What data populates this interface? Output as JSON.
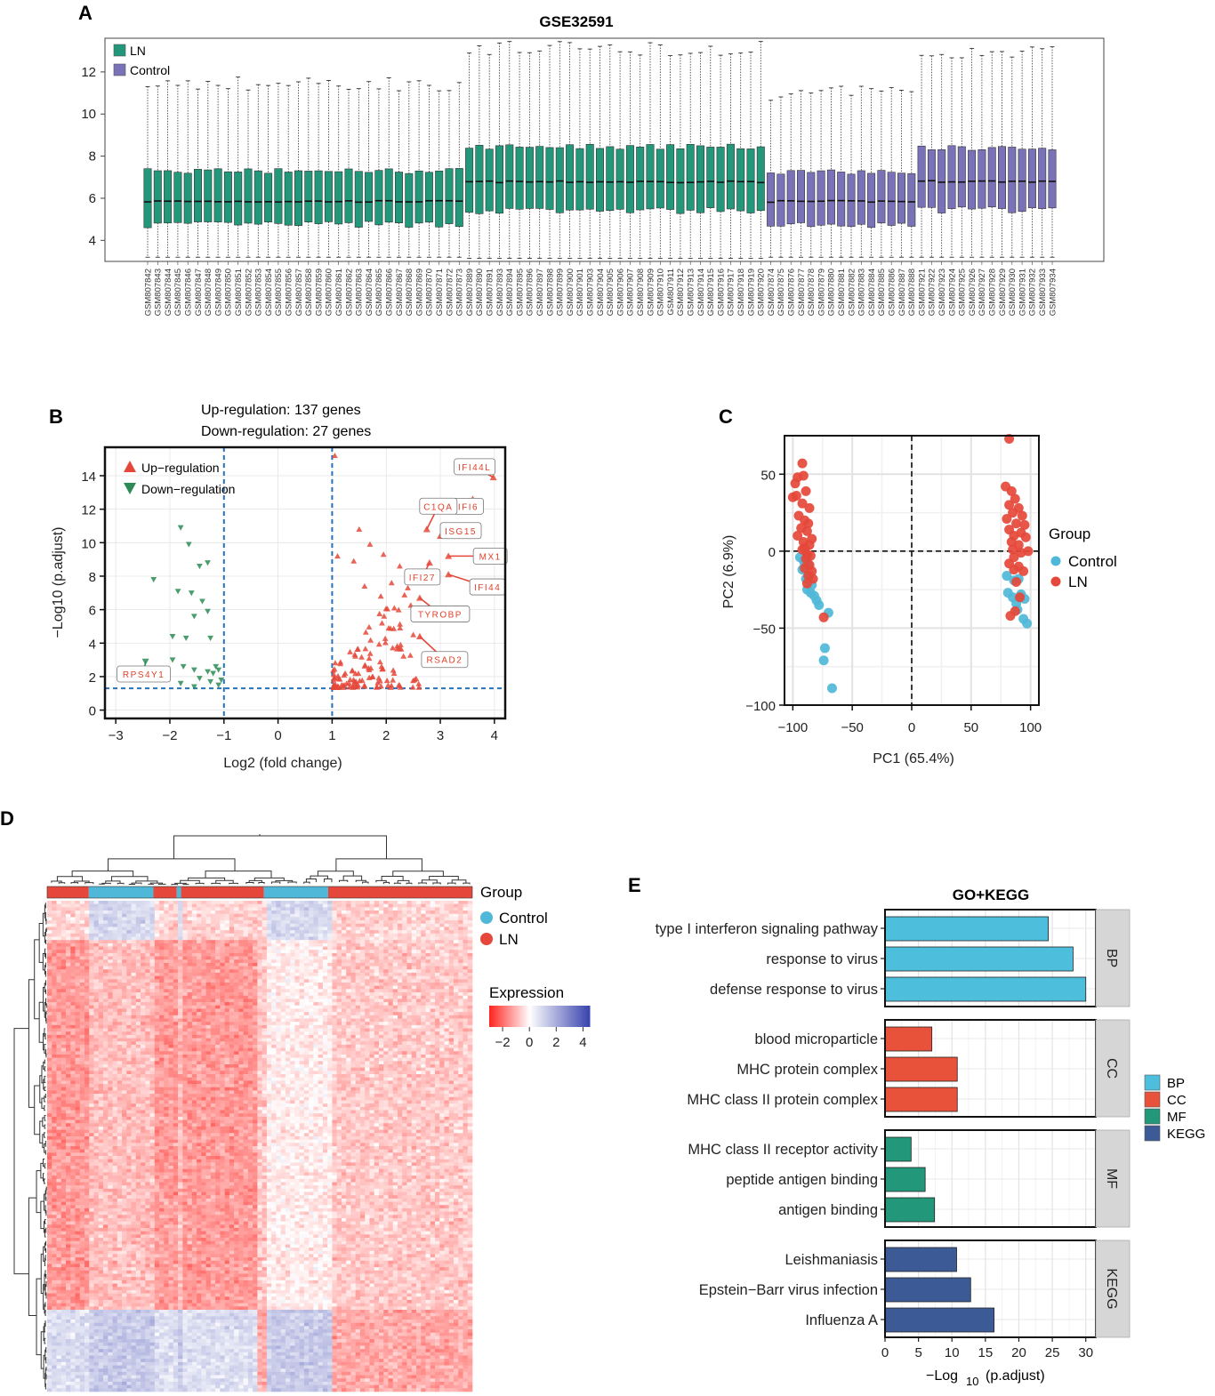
{
  "panels": {
    "a": "A",
    "b": "B",
    "c": "C",
    "d": "D",
    "e": "E"
  },
  "colors": {
    "ln_box": "#22977a",
    "control_box": "#7a72b8",
    "up": "#e5483a",
    "down": "#2e8b57",
    "pca_ln": "#e5483a",
    "pca_control": "#4fb8d8",
    "bp": "#4dbedc",
    "cc": "#e8513a",
    "mf": "#22977a",
    "kegg": "#3c5a96"
  },
  "chart_data": [
    {
      "type": "box",
      "title": "GSE32591",
      "legend": [
        "LN",
        "Control"
      ],
      "ylim": [
        3,
        13.6
      ],
      "yticks": [
        4,
        6,
        8,
        10,
        12
      ],
      "groups_by_sample": "LN: GSM807842-GSM807873 (median ~5.9) and GSM807889-GSM807920 (median ~6.8); Control: GSM807874-GSM807888 (median ~5.9) and GSM807921-GSM807934 (median ~6.8)",
      "samples": [
        "GSM807842",
        "GSM807843",
        "GSM807844",
        "GSM807845",
        "GSM807846",
        "GSM807847",
        "GSM807848",
        "GSM807849",
        "GSM807850",
        "GSM807851",
        "GSM807852",
        "GSM807853",
        "GSM807854",
        "GSM807855",
        "GSM807856",
        "GSM807857",
        "GSM807858",
        "GSM807859",
        "GSM807860",
        "GSM807861",
        "GSM807862",
        "GSM807863",
        "GSM807864",
        "GSM807865",
        "GSM807866",
        "GSM807867",
        "GSM807868",
        "GSM807869",
        "GSM807870",
        "GSM807871",
        "GSM807872",
        "GSM807873",
        "GSM807889",
        "GSM807890",
        "GSM807891",
        "GSM807893",
        "GSM807894",
        "GSM807895",
        "GSM807896",
        "GSM807897",
        "GSM807898",
        "GSM807899",
        "GSM807900",
        "GSM807901",
        "GSM807903",
        "GSM807904",
        "GSM807905",
        "GSM807906",
        "GSM807907",
        "GSM807908",
        "GSM807909",
        "GSM807910",
        "GSM807911",
        "GSM807912",
        "GSM807913",
        "GSM807914",
        "GSM807915",
        "GSM807916",
        "GSM807917",
        "GSM807918",
        "GSM807919",
        "GSM807920",
        "GSM807874",
        "GSM807875",
        "GSM807876",
        "GSM807877",
        "GSM807878",
        "GSM807879",
        "GSM807880",
        "GSM807881",
        "GSM807882",
        "GSM807883",
        "GSM807884",
        "GSM807885",
        "GSM807886",
        "GSM807887",
        "GSM807888",
        "GSM807921",
        "GSM807922",
        "GSM807923",
        "GSM807924",
        "GSM807925",
        "GSM807926",
        "GSM807927",
        "GSM807928",
        "GSM807929",
        "GSM807930",
        "GSM807931",
        "GSM807932",
        "GSM807933",
        "GSM807934"
      ],
      "group_counts": {
        "ln_a": 32,
        "ln_b": 30,
        "control_a": 15,
        "control_b": 14
      }
    },
    {
      "type": "scatter",
      "subtype": "volcano",
      "title_lines": [
        "Up-regulation: 137 genes",
        "Down-regulation: 27 genes"
      ],
      "legend": [
        "Up−regulation",
        "Down−regulation"
      ],
      "xlabel": "Log2 (fold change)",
      "ylabel": "−Log10 (p.adjust)",
      "xlim": [
        -3.2,
        4.2
      ],
      "ylim": [
        -0.5,
        15.7
      ],
      "xticks": [
        "−3",
        "−2",
        "−1",
        "0",
        "1",
        "2",
        "3",
        "4"
      ],
      "yticks": [
        "0",
        "2",
        "4",
        "6",
        "8",
        "10",
        "12",
        "14"
      ],
      "thresholds": {
        "log2fc": [
          -1,
          1
        ],
        "neglog10p": 1.3
      },
      "labeled_genes": [
        {
          "name": "IFI44L",
          "x": 3.98,
          "y": 13.9
        },
        {
          "name": "IFI6",
          "x": 3.6,
          "y": 12.6
        },
        {
          "name": "C1QA",
          "x": 2.75,
          "y": 10.8
        },
        {
          "name": "ISG15",
          "x": 3.0,
          "y": 10.4
        },
        {
          "name": "MX1",
          "x": 3.15,
          "y": 9.2
        },
        {
          "name": "IFI27",
          "x": 2.8,
          "y": 8.8
        },
        {
          "name": "IFI44",
          "x": 3.15,
          "y": 8.1
        },
        {
          "name": "TYROBP",
          "x": 2.62,
          "y": 6.7
        },
        {
          "name": "RSAD2",
          "x": 2.62,
          "y": 4.4
        },
        {
          "name": "RPS4Y1",
          "x": -2.45,
          "y": 2.9
        }
      ],
      "down_points": [
        [
          -1.8,
          10.9
        ],
        [
          -2.3,
          7.8
        ],
        [
          -1.65,
          9.9
        ],
        [
          -1.3,
          8.8
        ],
        [
          -1.45,
          8.6
        ],
        [
          -1.85,
          7.1
        ],
        [
          -1.6,
          7.0
        ],
        [
          -1.4,
          6.5
        ],
        [
          -1.3,
          5.9
        ],
        [
          -1.55,
          5.6
        ],
        [
          -1.95,
          4.4
        ],
        [
          -1.7,
          4.3
        ],
        [
          -1.25,
          4.3
        ],
        [
          -1.95,
          3.0
        ],
        [
          -1.75,
          2.6
        ],
        [
          -1.55,
          2.4
        ],
        [
          -1.3,
          2.3
        ],
        [
          -1.15,
          2.6
        ],
        [
          -1.2,
          2.2
        ],
        [
          -1.1,
          2.4
        ],
        [
          -1.45,
          1.9
        ],
        [
          -1.25,
          1.7
        ],
        [
          -1.55,
          1.4
        ],
        [
          -1.1,
          1.5
        ],
        [
          -1.8,
          1.6
        ],
        [
          -1.05,
          1.8
        ]
      ],
      "up_count": 137,
      "down_count": 27
    },
    {
      "type": "scatter",
      "subtype": "pca",
      "xlabel": "PC1 (65.4%)",
      "ylabel": "PC2 (6.9%)",
      "xlim": [
        -107,
        107
      ],
      "ylim": [
        -100,
        75
      ],
      "xticks": [
        "−100",
        "−50",
        "0",
        "50",
        "100"
      ],
      "yticks": [
        "50",
        "0",
        "−50",
        "−100"
      ],
      "legend_title": "Group",
      "legend": [
        "Control",
        "LN"
      ],
      "ln_points": [
        [
          -92,
          57
        ],
        [
          -96,
          48
        ],
        [
          -98,
          44
        ],
        [
          -91,
          49
        ],
        [
          -89,
          39
        ],
        [
          -97,
          36
        ],
        [
          -100,
          35
        ],
        [
          -92,
          31
        ],
        [
          -86,
          28
        ],
        [
          -95,
          23
        ],
        [
          -90,
          20
        ],
        [
          -87,
          18
        ],
        [
          -93,
          15
        ],
        [
          -88,
          13
        ],
        [
          -96,
          10
        ],
        [
          -84,
          8
        ],
        [
          -91,
          6
        ],
        [
          -86,
          4
        ],
        [
          -90,
          2
        ],
        [
          -92,
          1
        ],
        [
          -88,
          -2
        ],
        [
          -85,
          -3
        ],
        [
          -89,
          -5
        ],
        [
          -86,
          -9
        ],
        [
          -90,
          -11
        ],
        [
          -84,
          -13
        ],
        [
          -87,
          -16
        ],
        [
          -83,
          -18
        ],
        [
          -88,
          -21
        ],
        [
          -74,
          -43
        ],
        [
          82,
          73
        ],
        [
          79,
          42
        ],
        [
          84,
          39
        ],
        [
          87,
          34
        ],
        [
          82,
          30
        ],
        [
          90,
          28
        ],
        [
          85,
          25
        ],
        [
          93,
          23
        ],
        [
          80,
          21
        ],
        [
          88,
          18
        ],
        [
          95,
          17
        ],
        [
          82,
          14
        ],
        [
          92,
          12
        ],
        [
          86,
          10
        ],
        [
          96,
          9
        ],
        [
          84,
          6
        ],
        [
          90,
          4
        ],
        [
          85,
          1
        ],
        [
          92,
          -1
        ],
        [
          98,
          0
        ],
        [
          86,
          -4
        ],
        [
          82,
          -8
        ],
        [
          90,
          -10
        ],
        [
          86,
          -12
        ],
        [
          94,
          -13
        ],
        [
          88,
          -20
        ],
        [
          87,
          -39
        ],
        [
          91,
          -30
        ],
        [
          83,
          -42
        ]
      ],
      "control_points": [
        [
          -94,
          -4
        ],
        [
          -90,
          -8
        ],
        [
          -87,
          -9
        ],
        [
          -92,
          -12
        ],
        [
          -86,
          -16
        ],
        [
          -89,
          -18
        ],
        [
          -84,
          -22
        ],
        [
          -88,
          -25
        ],
        [
          -85,
          -27
        ],
        [
          -82,
          -29
        ],
        [
          -80,
          -32
        ],
        [
          -78,
          -35
        ],
        [
          -70,
          -40
        ],
        [
          -73,
          -63
        ],
        [
          -74,
          -71
        ],
        [
          -67,
          -89
        ],
        [
          -88,
          -3
        ],
        [
          -91,
          -6
        ],
        [
          80,
          -16
        ],
        [
          86,
          -19
        ],
        [
          90,
          -18
        ],
        [
          81,
          -27
        ],
        [
          85,
          -30
        ],
        [
          88,
          -34
        ],
        [
          92,
          -28
        ],
        [
          95,
          -31
        ],
        [
          89,
          -38
        ],
        [
          94,
          -44
        ],
        [
          97,
          -47
        ]
      ]
    },
    {
      "type": "heatmap",
      "legend_title": "Group",
      "legend": [
        "Control",
        "LN"
      ],
      "scale_title": "Expression",
      "scale_ticks": [
        "−2",
        "0",
        "2",
        "4"
      ],
      "group_bar": [
        "LN",
        "Control",
        "LN",
        "Control",
        "LN",
        "Control",
        "LN"
      ],
      "group_bar_fractions": [
        0.098,
        0.152,
        0.055,
        0.01,
        0.195,
        0.151,
        0.339
      ]
    },
    {
      "type": "bar",
      "orientation": "horizontal",
      "title": "GO+KEGG",
      "xlabel_main": "−Log",
      "xlabel_sub": "10",
      "xlabel_tail": "(p.adjust)",
      "xlim": [
        0,
        31.5
      ],
      "xticks": [
        "0",
        "5",
        "10",
        "15",
        "20",
        "25",
        "30"
      ],
      "legend": [
        "BP",
        "CC",
        "MF",
        "KEGG"
      ],
      "facets": [
        {
          "name": "BP",
          "terms": [
            "type I interferon signaling pathway",
            "response to virus",
            "defense response to virus"
          ],
          "values": [
            24.4,
            28.1,
            30.0
          ]
        },
        {
          "name": "CC",
          "terms": [
            "blood microparticle",
            "MHC protein complex",
            "MHC class II protein complex"
          ],
          "values": [
            7.0,
            10.8,
            10.8
          ]
        },
        {
          "name": "MF",
          "terms": [
            "MHC class II receptor activity",
            "peptide antigen binding",
            "antigen binding"
          ],
          "values": [
            3.9,
            6.0,
            7.4
          ]
        },
        {
          "name": "KEGG",
          "terms": [
            "Leishmaniasis",
            "Epstein−Barr virus infection",
            "Influenza A"
          ],
          "values": [
            10.7,
            12.8,
            16.3
          ]
        }
      ]
    }
  ]
}
